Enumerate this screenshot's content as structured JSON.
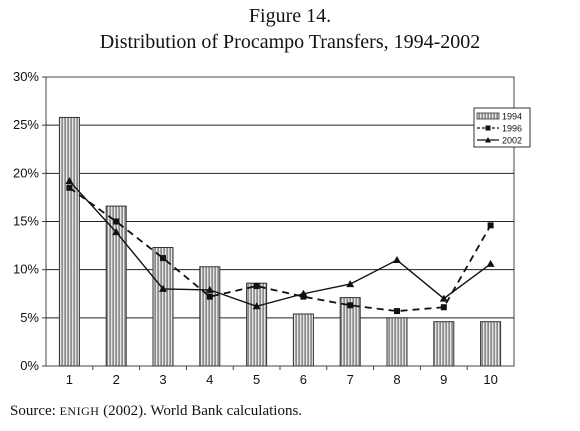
{
  "figure": {
    "title_line1": "Figure 14.",
    "title_line2": "Distribution of Procampo Transfers, 1994-2002"
  },
  "source": {
    "prefix": "Source: ",
    "acronym": "ENIGH",
    "rest": " (2002). World Bank calculations."
  },
  "chart_data": {
    "type": "bar",
    "categories": [
      "1",
      "2",
      "3",
      "4",
      "5",
      "6",
      "7",
      "8",
      "9",
      "10"
    ],
    "ylim": [
      0,
      30
    ],
    "yticks": [
      "0%",
      "5%",
      "10%",
      "15%",
      "20%",
      "25%",
      "30%"
    ],
    "ytick_values": [
      0,
      5,
      10,
      15,
      20,
      25,
      30
    ],
    "grid": true,
    "legend_position": "top-right",
    "series": [
      {
        "name": "1994",
        "type": "bar",
        "values": [
          25.8,
          16.6,
          12.3,
          10.3,
          8.6,
          5.4,
          7.1,
          5.0,
          4.6,
          4.6
        ]
      },
      {
        "name": "1996",
        "type": "line",
        "style": "dashed",
        "marker": "square",
        "values": [
          18.5,
          15.0,
          11.2,
          7.2,
          8.3,
          7.2,
          6.3,
          5.7,
          6.1,
          14.6
        ]
      },
      {
        "name": "2002",
        "type": "line",
        "style": "solid",
        "marker": "triangle",
        "values": [
          19.2,
          13.9,
          8.0,
          7.9,
          6.2,
          7.5,
          8.5,
          11.0,
          7.0,
          10.6
        ]
      }
    ],
    "colors": {
      "bar_fill": "#9a9a9a",
      "bar_stripe": "#e8e8e8",
      "line": "#111111",
      "grid": "#222222"
    }
  }
}
